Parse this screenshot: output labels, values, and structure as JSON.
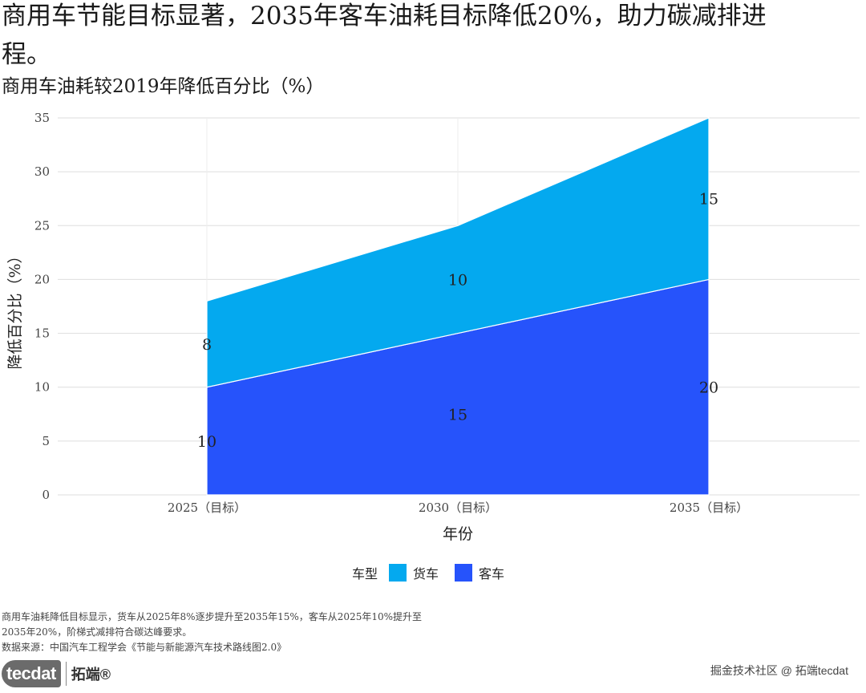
{
  "title": "商用车节能目标显著，2035年客车油耗目标降低20%，助力碳减排进程。",
  "subtitle": "商用车油耗较2019年降低百分比（%）",
  "chart_data": {
    "type": "area",
    "stacked": true,
    "categories": [
      "2025（目标）",
      "2030（目标）",
      "2035（目标）"
    ],
    "series": [
      {
        "name": "客车",
        "values": [
          10,
          15,
          20
        ],
        "color": "#2653fb"
      },
      {
        "name": "货车",
        "values": [
          8,
          10,
          15
        ],
        "color": "#04a9ef"
      }
    ],
    "xlabel": "年份",
    "ylabel": "降低百分比（%）",
    "ylim": [
      0,
      35
    ],
    "yticks": [
      0,
      5,
      10,
      15,
      20,
      25,
      30,
      35
    ],
    "grid": true,
    "legend_position": "bottom",
    "legend_title": "车型",
    "legend_order": [
      "货车",
      "客车"
    ]
  },
  "caption": {
    "line1": "商用车油耗降低目标显示，货车从2025年8%逐步提升至2035年15%，客车从2025年10%提升至",
    "line2": "2035年20%，阶梯式减排符合碳达峰要求。",
    "source": "数据来源：中国汽车工程学会《节能与新能源汽车技术路线图2.0》"
  },
  "footer": {
    "brand_en": "tecdat",
    "brand_cn": "拓端®",
    "watermark": "掘金技术社区 @ 拓端tecdat"
  }
}
